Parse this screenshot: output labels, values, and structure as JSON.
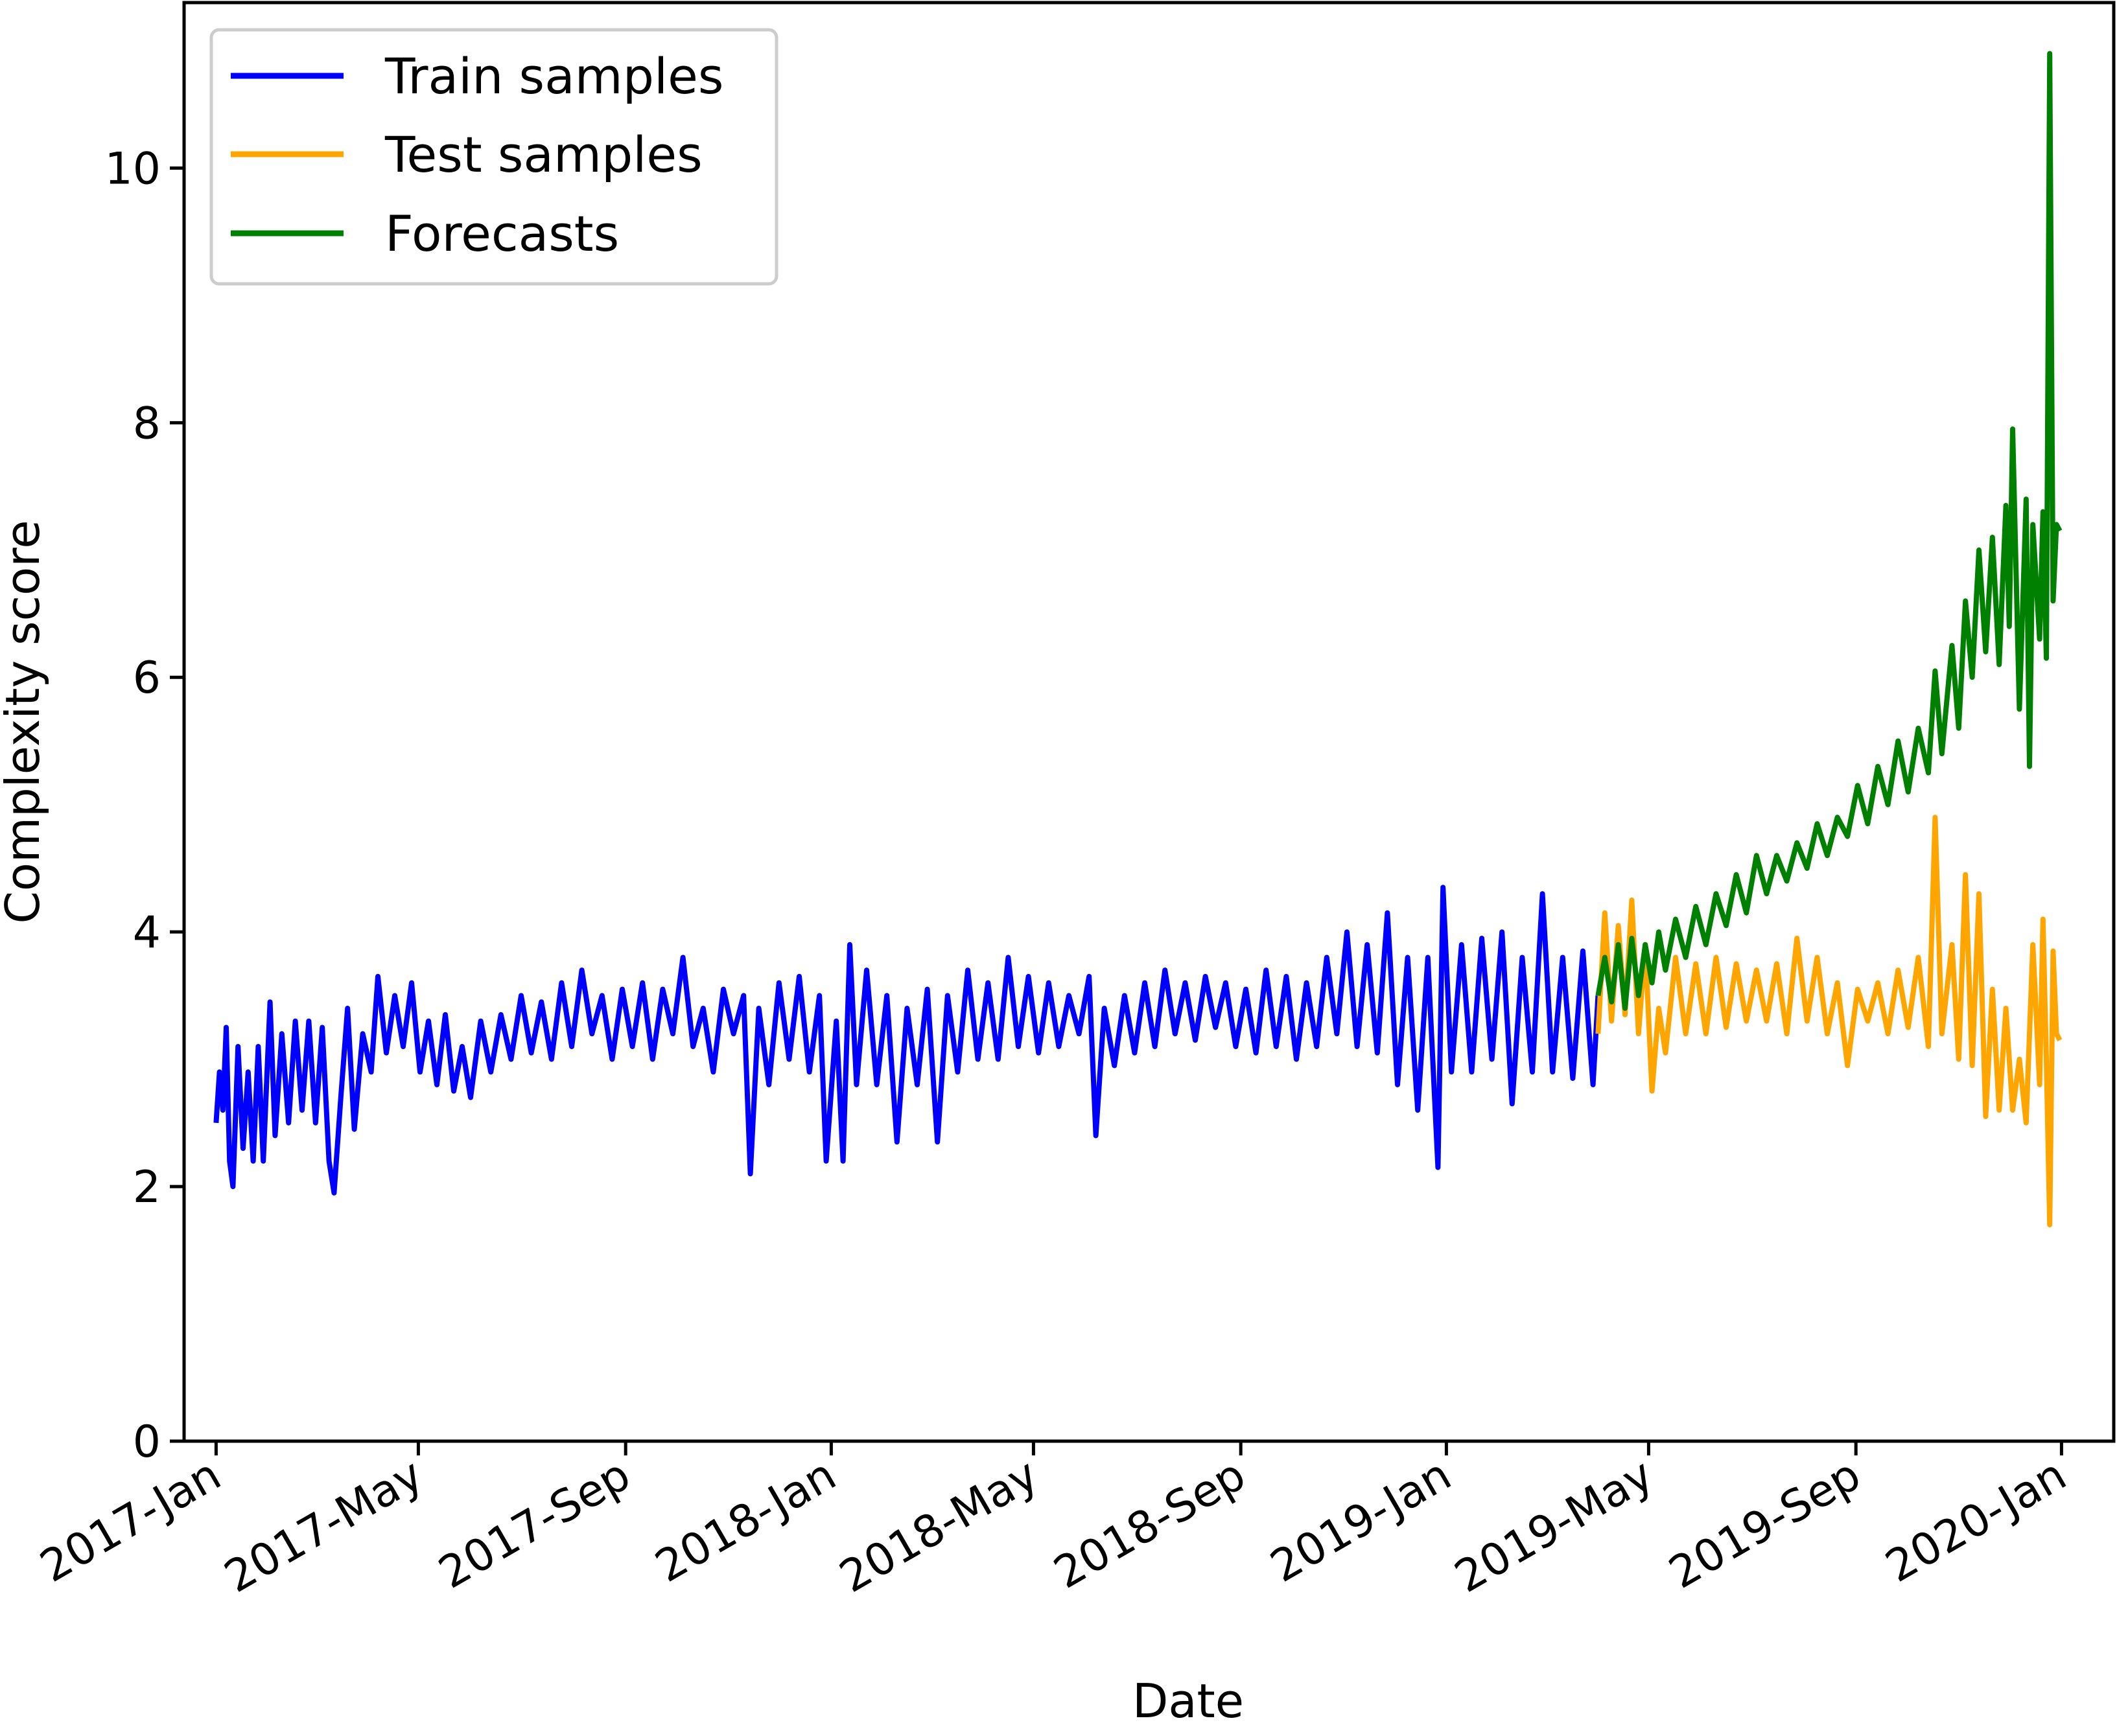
{
  "chart_data": {
    "type": "line",
    "title": "",
    "xlabel": "Date",
    "ylabel": "Complexity score",
    "ylim": [
      0,
      11.3
    ],
    "xlim": [
      "2016-12-13",
      "2020-02-01"
    ],
    "grid": false,
    "legend_position": "top-left",
    "yticks": [
      0,
      2,
      4,
      6,
      8,
      10
    ],
    "xticks": [
      {
        "date": "2017-01-01",
        "label": "2017-Jan"
      },
      {
        "date": "2017-05-01",
        "label": "2017-May"
      },
      {
        "date": "2017-09-01",
        "label": "2017-Sep"
      },
      {
        "date": "2018-01-01",
        "label": "2018-Jan"
      },
      {
        "date": "2018-05-01",
        "label": "2018-May"
      },
      {
        "date": "2018-09-01",
        "label": "2018-Sep"
      },
      {
        "date": "2019-01-01",
        "label": "2019-Jan"
      },
      {
        "date": "2019-05-01",
        "label": "2019-May"
      },
      {
        "date": "2019-09-01",
        "label": "2019-Sep"
      },
      {
        "date": "2020-01-01",
        "label": "2020-Jan"
      }
    ],
    "series": [
      {
        "name": "Train samples",
        "color": "#0000ff",
        "points": [
          [
            "2017-01-01",
            2.5
          ],
          [
            "2017-01-03",
            2.9
          ],
          [
            "2017-01-05",
            2.6
          ],
          [
            "2017-01-07",
            3.25
          ],
          [
            "2017-01-09",
            2.2
          ],
          [
            "2017-01-11",
            2.0
          ],
          [
            "2017-01-14",
            3.1
          ],
          [
            "2017-01-17",
            2.3
          ],
          [
            "2017-01-20",
            2.9
          ],
          [
            "2017-01-23",
            2.2
          ],
          [
            "2017-01-26",
            3.1
          ],
          [
            "2017-01-29",
            2.2
          ],
          [
            "2017-02-02",
            3.45
          ],
          [
            "2017-02-05",
            2.4
          ],
          [
            "2017-02-09",
            3.2
          ],
          [
            "2017-02-13",
            2.5
          ],
          [
            "2017-02-17",
            3.3
          ],
          [
            "2017-02-21",
            2.6
          ],
          [
            "2017-02-25",
            3.3
          ],
          [
            "2017-03-01",
            2.5
          ],
          [
            "2017-03-05",
            3.25
          ],
          [
            "2017-03-09",
            2.2
          ],
          [
            "2017-03-12",
            1.95
          ],
          [
            "2017-03-16",
            2.7
          ],
          [
            "2017-03-20",
            3.4
          ],
          [
            "2017-03-24",
            2.45
          ],
          [
            "2017-03-29",
            3.2
          ],
          [
            "2017-04-03",
            2.9
          ],
          [
            "2017-04-07",
            3.65
          ],
          [
            "2017-04-12",
            3.05
          ],
          [
            "2017-04-17",
            3.5
          ],
          [
            "2017-04-22",
            3.1
          ],
          [
            "2017-04-27",
            3.6
          ],
          [
            "2017-05-02",
            2.9
          ],
          [
            "2017-05-07",
            3.3
          ],
          [
            "2017-05-12",
            2.8
          ],
          [
            "2017-05-17",
            3.35
          ],
          [
            "2017-05-22",
            2.75
          ],
          [
            "2017-05-27",
            3.1
          ],
          [
            "2017-06-01",
            2.7
          ],
          [
            "2017-06-07",
            3.3
          ],
          [
            "2017-06-13",
            2.9
          ],
          [
            "2017-06-19",
            3.35
          ],
          [
            "2017-06-25",
            3.0
          ],
          [
            "2017-07-01",
            3.5
          ],
          [
            "2017-07-07",
            3.05
          ],
          [
            "2017-07-13",
            3.45
          ],
          [
            "2017-07-19",
            3.0
          ],
          [
            "2017-07-25",
            3.6
          ],
          [
            "2017-07-31",
            3.1
          ],
          [
            "2017-08-06",
            3.7
          ],
          [
            "2017-08-12",
            3.2
          ],
          [
            "2017-08-18",
            3.5
          ],
          [
            "2017-08-24",
            3.0
          ],
          [
            "2017-08-30",
            3.55
          ],
          [
            "2017-09-05",
            3.1
          ],
          [
            "2017-09-11",
            3.6
          ],
          [
            "2017-09-17",
            3.0
          ],
          [
            "2017-09-23",
            3.55
          ],
          [
            "2017-09-29",
            3.2
          ],
          [
            "2017-10-05",
            3.8
          ],
          [
            "2017-10-11",
            3.1
          ],
          [
            "2017-10-17",
            3.4
          ],
          [
            "2017-10-23",
            2.9
          ],
          [
            "2017-10-29",
            3.55
          ],
          [
            "2017-11-04",
            3.2
          ],
          [
            "2017-11-10",
            3.5
          ],
          [
            "2017-11-14",
            2.1
          ],
          [
            "2017-11-19",
            3.4
          ],
          [
            "2017-11-25",
            2.8
          ],
          [
            "2017-12-01",
            3.6
          ],
          [
            "2017-12-07",
            3.0
          ],
          [
            "2017-12-13",
            3.65
          ],
          [
            "2017-12-19",
            2.9
          ],
          [
            "2017-12-25",
            3.5
          ],
          [
            "2017-12-29",
            2.2
          ],
          [
            "2018-01-04",
            3.3
          ],
          [
            "2018-01-08",
            2.2
          ],
          [
            "2018-01-12",
            3.9
          ],
          [
            "2018-01-16",
            2.8
          ],
          [
            "2018-01-22",
            3.7
          ],
          [
            "2018-01-28",
            2.8
          ],
          [
            "2018-02-03",
            3.5
          ],
          [
            "2018-02-09",
            2.35
          ],
          [
            "2018-02-15",
            3.4
          ],
          [
            "2018-02-21",
            2.8
          ],
          [
            "2018-02-27",
            3.55
          ],
          [
            "2018-03-05",
            2.35
          ],
          [
            "2018-03-11",
            3.5
          ],
          [
            "2018-03-17",
            2.9
          ],
          [
            "2018-03-23",
            3.7
          ],
          [
            "2018-03-29",
            3.0
          ],
          [
            "2018-04-04",
            3.6
          ],
          [
            "2018-04-10",
            3.0
          ],
          [
            "2018-04-16",
            3.8
          ],
          [
            "2018-04-22",
            3.1
          ],
          [
            "2018-04-28",
            3.65
          ],
          [
            "2018-05-04",
            3.05
          ],
          [
            "2018-05-10",
            3.6
          ],
          [
            "2018-05-16",
            3.1
          ],
          [
            "2018-05-22",
            3.5
          ],
          [
            "2018-05-28",
            3.2
          ],
          [
            "2018-06-03",
            3.65
          ],
          [
            "2018-06-07",
            2.4
          ],
          [
            "2018-06-12",
            3.4
          ],
          [
            "2018-06-18",
            2.95
          ],
          [
            "2018-06-24",
            3.5
          ],
          [
            "2018-06-30",
            3.05
          ],
          [
            "2018-07-06",
            3.6
          ],
          [
            "2018-07-12",
            3.1
          ],
          [
            "2018-07-18",
            3.7
          ],
          [
            "2018-07-24",
            3.2
          ],
          [
            "2018-07-30",
            3.6
          ],
          [
            "2018-08-05",
            3.15
          ],
          [
            "2018-08-11",
            3.65
          ],
          [
            "2018-08-17",
            3.25
          ],
          [
            "2018-08-23",
            3.6
          ],
          [
            "2018-08-29",
            3.1
          ],
          [
            "2018-09-04",
            3.55
          ],
          [
            "2018-09-10",
            3.05
          ],
          [
            "2018-09-16",
            3.7
          ],
          [
            "2018-09-22",
            3.1
          ],
          [
            "2018-09-28",
            3.65
          ],
          [
            "2018-10-04",
            3.0
          ],
          [
            "2018-10-10",
            3.6
          ],
          [
            "2018-10-16",
            3.1
          ],
          [
            "2018-10-22",
            3.8
          ],
          [
            "2018-10-28",
            3.2
          ],
          [
            "2018-11-03",
            4.0
          ],
          [
            "2018-11-09",
            3.1
          ],
          [
            "2018-11-15",
            3.9
          ],
          [
            "2018-11-21",
            3.05
          ],
          [
            "2018-11-27",
            4.15
          ],
          [
            "2018-12-03",
            2.8
          ],
          [
            "2018-12-09",
            3.8
          ],
          [
            "2018-12-15",
            2.6
          ],
          [
            "2018-12-21",
            3.8
          ],
          [
            "2018-12-27",
            2.15
          ],
          [
            "2018-12-30",
            4.35
          ],
          [
            "2019-01-04",
            2.9
          ],
          [
            "2019-01-10",
            3.9
          ],
          [
            "2019-01-16",
            2.9
          ],
          [
            "2019-01-22",
            3.95
          ],
          [
            "2019-01-28",
            3.0
          ],
          [
            "2019-02-03",
            4.0
          ],
          [
            "2019-02-09",
            2.65
          ],
          [
            "2019-02-15",
            3.8
          ],
          [
            "2019-02-21",
            2.9
          ],
          [
            "2019-02-27",
            4.3
          ],
          [
            "2019-03-05",
            2.9
          ],
          [
            "2019-03-11",
            3.8
          ],
          [
            "2019-03-17",
            2.85
          ],
          [
            "2019-03-23",
            3.85
          ],
          [
            "2019-03-29",
            2.8
          ],
          [
            "2019-04-01",
            3.5
          ]
        ]
      },
      {
        "name": "Test samples",
        "color": "#ffa500",
        "points": [
          [
            "2019-04-01",
            3.2
          ],
          [
            "2019-04-05",
            4.15
          ],
          [
            "2019-04-09",
            3.3
          ],
          [
            "2019-04-13",
            4.05
          ],
          [
            "2019-04-17",
            3.35
          ],
          [
            "2019-04-21",
            4.25
          ],
          [
            "2019-04-25",
            3.2
          ],
          [
            "2019-04-29",
            3.9
          ],
          [
            "2019-05-03",
            2.75
          ],
          [
            "2019-05-07",
            3.4
          ],
          [
            "2019-05-11",
            3.05
          ],
          [
            "2019-05-17",
            3.8
          ],
          [
            "2019-05-23",
            3.2
          ],
          [
            "2019-05-29",
            3.75
          ],
          [
            "2019-06-04",
            3.2
          ],
          [
            "2019-06-10",
            3.8
          ],
          [
            "2019-06-16",
            3.25
          ],
          [
            "2019-06-22",
            3.75
          ],
          [
            "2019-06-28",
            3.3
          ],
          [
            "2019-07-04",
            3.7
          ],
          [
            "2019-07-10",
            3.3
          ],
          [
            "2019-07-16",
            3.75
          ],
          [
            "2019-07-22",
            3.2
          ],
          [
            "2019-07-28",
            3.95
          ],
          [
            "2019-08-03",
            3.3
          ],
          [
            "2019-08-09",
            3.8
          ],
          [
            "2019-08-15",
            3.2
          ],
          [
            "2019-08-21",
            3.6
          ],
          [
            "2019-08-27",
            2.95
          ],
          [
            "2019-09-02",
            3.55
          ],
          [
            "2019-09-08",
            3.3
          ],
          [
            "2019-09-14",
            3.6
          ],
          [
            "2019-09-20",
            3.2
          ],
          [
            "2019-09-26",
            3.7
          ],
          [
            "2019-10-02",
            3.25
          ],
          [
            "2019-10-08",
            3.8
          ],
          [
            "2019-10-14",
            3.1
          ],
          [
            "2019-10-18",
            4.9
          ],
          [
            "2019-10-22",
            3.2
          ],
          [
            "2019-10-28",
            3.9
          ],
          [
            "2019-11-01",
            3.0
          ],
          [
            "2019-11-05",
            4.45
          ],
          [
            "2019-11-09",
            2.95
          ],
          [
            "2019-11-13",
            4.3
          ],
          [
            "2019-11-17",
            2.55
          ],
          [
            "2019-11-21",
            3.55
          ],
          [
            "2019-11-25",
            2.6
          ],
          [
            "2019-11-29",
            3.4
          ],
          [
            "2019-12-03",
            2.6
          ],
          [
            "2019-12-07",
            3.0
          ],
          [
            "2019-12-11",
            2.5
          ],
          [
            "2019-12-15",
            3.9
          ],
          [
            "2019-12-19",
            2.8
          ],
          [
            "2019-12-21",
            4.1
          ],
          [
            "2019-12-23",
            3.0
          ],
          [
            "2019-12-25",
            1.7
          ],
          [
            "2019-12-27",
            3.85
          ],
          [
            "2019-12-29",
            3.2
          ],
          [
            "2019-12-31",
            3.15
          ]
        ]
      },
      {
        "name": "Forecasts",
        "color": "#008000",
        "points": [
          [
            "2019-04-01",
            3.5
          ],
          [
            "2019-04-05",
            3.8
          ],
          [
            "2019-04-09",
            3.45
          ],
          [
            "2019-04-13",
            3.9
          ],
          [
            "2019-04-17",
            3.4
          ],
          [
            "2019-04-21",
            3.95
          ],
          [
            "2019-04-25",
            3.5
          ],
          [
            "2019-04-29",
            3.9
          ],
          [
            "2019-05-03",
            3.6
          ],
          [
            "2019-05-07",
            4.0
          ],
          [
            "2019-05-11",
            3.7
          ],
          [
            "2019-05-17",
            4.1
          ],
          [
            "2019-05-23",
            3.8
          ],
          [
            "2019-05-29",
            4.2
          ],
          [
            "2019-06-04",
            3.9
          ],
          [
            "2019-06-10",
            4.3
          ],
          [
            "2019-06-16",
            4.05
          ],
          [
            "2019-06-22",
            4.45
          ],
          [
            "2019-06-28",
            4.15
          ],
          [
            "2019-07-04",
            4.6
          ],
          [
            "2019-07-10",
            4.3
          ],
          [
            "2019-07-16",
            4.6
          ],
          [
            "2019-07-22",
            4.4
          ],
          [
            "2019-07-28",
            4.7
          ],
          [
            "2019-08-03",
            4.5
          ],
          [
            "2019-08-09",
            4.85
          ],
          [
            "2019-08-15",
            4.6
          ],
          [
            "2019-08-21",
            4.9
          ],
          [
            "2019-08-27",
            4.75
          ],
          [
            "2019-09-02",
            5.15
          ],
          [
            "2019-09-08",
            4.85
          ],
          [
            "2019-09-14",
            5.3
          ],
          [
            "2019-09-20",
            5.0
          ],
          [
            "2019-09-26",
            5.5
          ],
          [
            "2019-10-02",
            5.1
          ],
          [
            "2019-10-08",
            5.6
          ],
          [
            "2019-10-14",
            5.25
          ],
          [
            "2019-10-18",
            6.05
          ],
          [
            "2019-10-22",
            5.4
          ],
          [
            "2019-10-28",
            6.25
          ],
          [
            "2019-11-01",
            5.6
          ],
          [
            "2019-11-05",
            6.6
          ],
          [
            "2019-11-09",
            6.0
          ],
          [
            "2019-11-13",
            7.0
          ],
          [
            "2019-11-17",
            6.2
          ],
          [
            "2019-11-21",
            7.1
          ],
          [
            "2019-11-25",
            6.1
          ],
          [
            "2019-11-29",
            7.35
          ],
          [
            "2019-12-01",
            6.4
          ],
          [
            "2019-12-03",
            7.95
          ],
          [
            "2019-12-07",
            5.75
          ],
          [
            "2019-12-11",
            7.4
          ],
          [
            "2019-12-13",
            5.3
          ],
          [
            "2019-12-15",
            7.2
          ],
          [
            "2019-12-19",
            6.3
          ],
          [
            "2019-12-21",
            7.3
          ],
          [
            "2019-12-23",
            6.15
          ],
          [
            "2019-12-25",
            10.9
          ],
          [
            "2019-12-27",
            6.6
          ],
          [
            "2019-12-29",
            7.2
          ],
          [
            "2019-12-31",
            7.15
          ]
        ]
      }
    ]
  }
}
